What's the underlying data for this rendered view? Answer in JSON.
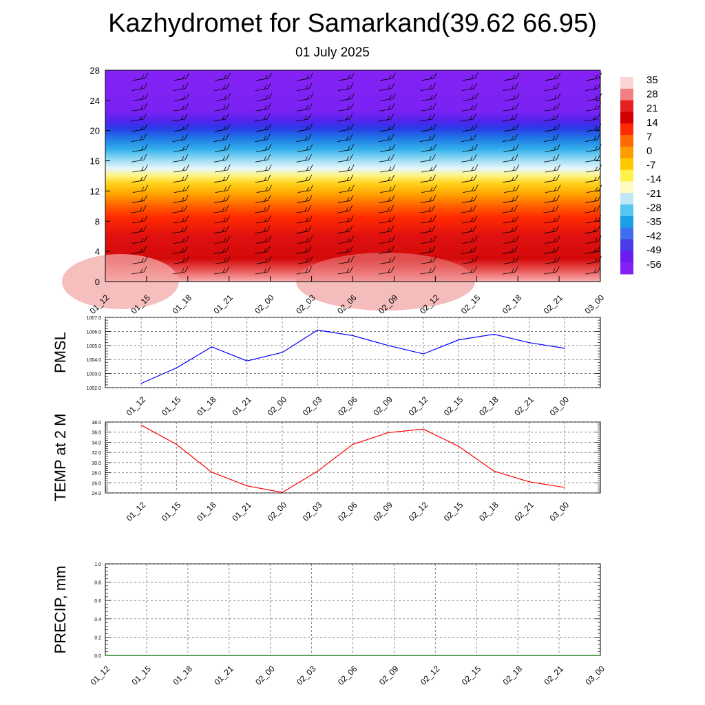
{
  "title": "Kazhydromet for Samarkand(39.62 66.95)",
  "subtitle": "01 July 2025",
  "time_labels": [
    "01_12",
    "01_15",
    "01_18",
    "01_21",
    "02_00",
    "02_03",
    "02_06",
    "02_09",
    "02_12",
    "02_15",
    "02_18",
    "02_21",
    "03_00"
  ],
  "colors": {
    "pmsl_line": "#0000ff",
    "temp_line": "#ff0000",
    "precip_line": "#006400",
    "barb": "#000000"
  },
  "chart_data": [
    {
      "type": "heatmap",
      "name": "temperature-wind-cross-section",
      "y_ticks": [
        0,
        4,
        8,
        12,
        16,
        20,
        24,
        28
      ],
      "ylim": [
        0,
        28
      ],
      "colorbar_labels": [
        "35",
        "28",
        "21",
        "14",
        "7",
        "0",
        "-7",
        "-14",
        "-21",
        "-28",
        "-35",
        "-42",
        "-49",
        "-56"
      ],
      "colorbar_colors": [
        "#fbd5d5",
        "#f28080",
        "#e42020",
        "#d10000",
        "#ff2a00",
        "#ff6a00",
        "#ff9a00",
        "#ffc800",
        "#fff04a",
        "#fffbc0",
        "#bfe7f6",
        "#56c7f0",
        "#1c9fe6",
        "#3f6ff0",
        "#4b3ce8",
        "#6a1cf0",
        "#8420f5"
      ],
      "wind_barbs": "shown"
    },
    {
      "type": "line",
      "name": "PMSL",
      "ylabel": "PMSL",
      "y_ticks": [
        "1002.0",
        "1003.0",
        "1004.0",
        "1005.0",
        "1006.0",
        "1007.0"
      ],
      "ylim": [
        1002,
        1007
      ],
      "x": [
        "01_12",
        "01_15",
        "01_18",
        "01_21",
        "02_00",
        "02_03",
        "02_06",
        "02_09",
        "02_12",
        "02_15",
        "02_18",
        "02_21",
        "03_00"
      ],
      "values": [
        1002.3,
        1003.4,
        1004.9,
        1003.9,
        1004.5,
        1006.1,
        1005.7,
        1005.0,
        1004.4,
        1005.4,
        1005.8,
        1005.2,
        1004.8
      ],
      "grid": true
    },
    {
      "type": "line",
      "name": "TEMP at 2 M",
      "ylabel": "TEMP at 2 M",
      "y_ticks": [
        "24.0",
        "26.0",
        "28.0",
        "30.0",
        "32.0",
        "34.0",
        "36.0",
        "38.0"
      ],
      "ylim": [
        24,
        38
      ],
      "x": [
        "01_12",
        "01_15",
        "01_18",
        "01_21",
        "02_00",
        "02_03",
        "02_06",
        "02_09",
        "02_12",
        "02_15",
        "02_18",
        "02_21",
        "03_00"
      ],
      "values": [
        37.4,
        33.6,
        28.1,
        25.4,
        24.1,
        28.3,
        33.6,
        35.9,
        36.6,
        33.2,
        28.3,
        26.2,
        25.1
      ],
      "grid": true
    },
    {
      "type": "line",
      "name": "PRECIP, mm",
      "ylabel": "PRECIP, mm",
      "y_ticks": [
        "0.0",
        "0.2",
        "0.4",
        "0.6",
        "0.8",
        "1.0"
      ],
      "ylim": [
        0,
        1
      ],
      "x": [
        "01_12",
        "01_15",
        "01_18",
        "01_21",
        "02_00",
        "02_03",
        "02_06",
        "02_09",
        "02_12",
        "02_15",
        "02_18",
        "02_21",
        "03_00"
      ],
      "values": [
        0,
        0,
        0,
        0,
        0,
        0,
        0,
        0,
        0,
        0,
        0,
        0,
        0
      ],
      "grid": true
    }
  ]
}
